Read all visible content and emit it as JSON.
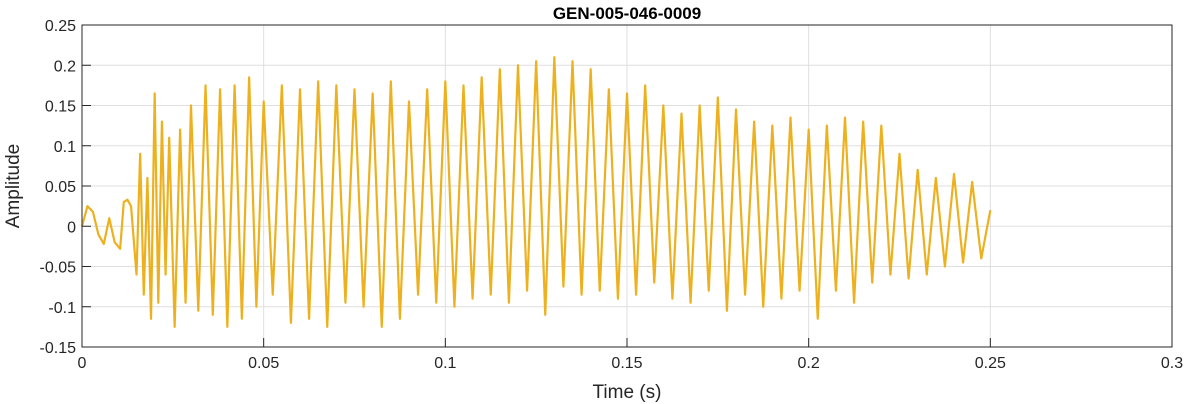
{
  "chart_data": {
    "type": "line",
    "title": "GEN-005-046-0009",
    "xlabel": "Time (s)",
    "ylabel": "Amplitude",
    "xlim": [
      0,
      0.3
    ],
    "ylim": [
      -0.15,
      0.25
    ],
    "x_ticks": [
      0,
      0.05,
      0.1,
      0.15,
      0.2,
      0.25,
      0.3
    ],
    "x_tick_labels": [
      "0",
      "0.05",
      "0.1",
      "0.15",
      "0.2",
      "0.25",
      "0.3"
    ],
    "y_ticks": [
      -0.15,
      -0.1,
      -0.05,
      0,
      0.05,
      0.1,
      0.15,
      0.2,
      0.25
    ],
    "y_tick_labels": [
      "-0.15",
      "-0.1",
      "-0.05",
      "0",
      "0.05",
      "0.1",
      "0.15",
      "0.2",
      "0.25"
    ],
    "grid": true,
    "series": [
      {
        "color": "#EDB120",
        "x": [
          0.0,
          0.0015,
          0.003,
          0.0045,
          0.006,
          0.0075,
          0.009,
          0.0105,
          0.0115,
          0.0125,
          0.0135,
          0.015,
          0.016,
          0.017,
          0.018,
          0.019,
          0.02,
          0.021,
          0.022,
          0.023,
          0.024,
          0.0255,
          0.027,
          0.0285,
          0.03,
          0.032,
          0.034,
          0.036,
          0.038,
          0.04,
          0.042,
          0.044,
          0.046,
          0.048,
          0.05,
          0.0525,
          0.055,
          0.0575,
          0.06,
          0.0625,
          0.065,
          0.0675,
          0.07,
          0.0725,
          0.075,
          0.0775,
          0.08,
          0.0825,
          0.085,
          0.0875,
          0.09,
          0.0925,
          0.095,
          0.0975,
          0.1,
          0.1025,
          0.105,
          0.1075,
          0.11,
          0.1125,
          0.115,
          0.1175,
          0.12,
          0.1225,
          0.125,
          0.1275,
          0.13,
          0.1325,
          0.135,
          0.1375,
          0.14,
          0.1425,
          0.145,
          0.1475,
          0.15,
          0.1525,
          0.155,
          0.1575,
          0.16,
          0.1625,
          0.165,
          0.1675,
          0.17,
          0.1725,
          0.175,
          0.1775,
          0.18,
          0.1825,
          0.185,
          0.1875,
          0.19,
          0.1925,
          0.195,
          0.1975,
          0.2,
          0.2025,
          0.205,
          0.2075,
          0.21,
          0.2125,
          0.215,
          0.2175,
          0.22,
          0.2225,
          0.225,
          0.2275,
          0.23,
          0.2325,
          0.235,
          0.2375,
          0.24,
          0.2425,
          0.245,
          0.2475,
          0.25
        ],
        "y": [
          0.0,
          0.025,
          0.018,
          -0.01,
          -0.022,
          0.01,
          -0.02,
          -0.028,
          0.03,
          0.033,
          0.025,
          -0.06,
          0.09,
          -0.085,
          0.06,
          -0.115,
          0.165,
          -0.095,
          0.13,
          -0.06,
          0.11,
          -0.125,
          0.12,
          -0.095,
          0.15,
          -0.105,
          0.175,
          -0.11,
          0.17,
          -0.125,
          0.175,
          -0.115,
          0.185,
          -0.1,
          0.155,
          -0.085,
          0.175,
          -0.12,
          0.17,
          -0.115,
          0.18,
          -0.125,
          0.175,
          -0.095,
          0.17,
          -0.1,
          0.165,
          -0.125,
          0.18,
          -0.115,
          0.155,
          -0.085,
          0.17,
          -0.095,
          0.18,
          -0.1,
          0.175,
          -0.09,
          0.185,
          -0.085,
          0.195,
          -0.095,
          0.2,
          -0.08,
          0.205,
          -0.11,
          0.21,
          -0.075,
          0.205,
          -0.085,
          0.195,
          -0.08,
          0.17,
          -0.09,
          0.165,
          -0.085,
          0.175,
          -0.07,
          0.15,
          -0.09,
          0.14,
          -0.095,
          0.15,
          -0.08,
          0.16,
          -0.105,
          0.145,
          -0.085,
          0.13,
          -0.1,
          0.125,
          -0.09,
          0.135,
          -0.08,
          0.12,
          -0.115,
          0.125,
          -0.08,
          0.135,
          -0.095,
          0.13,
          -0.07,
          0.125,
          -0.06,
          0.09,
          -0.065,
          0.07,
          -0.06,
          0.06,
          -0.05,
          0.065,
          -0.045,
          0.055,
          -0.04,
          0.02
        ]
      }
    ]
  }
}
